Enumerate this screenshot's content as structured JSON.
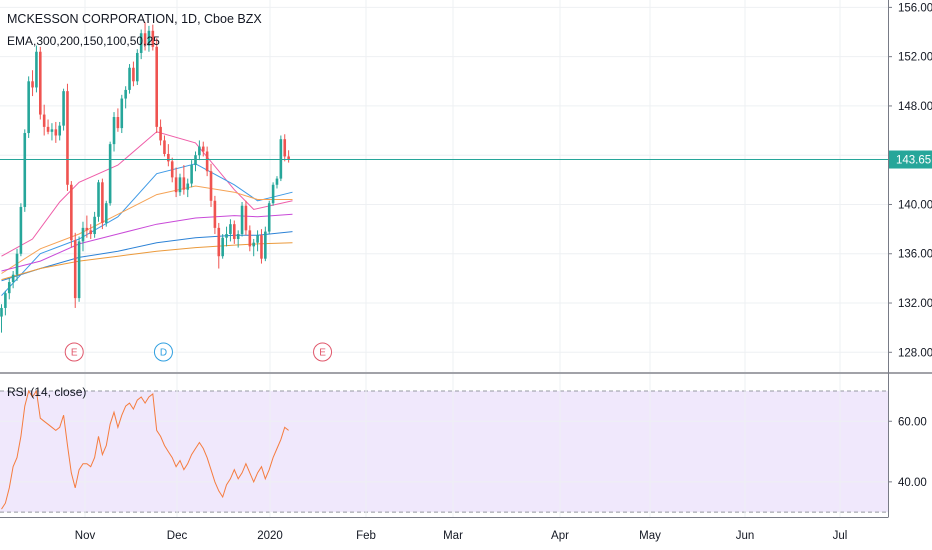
{
  "header": {
    "title": "MCKESSON CORPORATION, 1D, Cboe BZX",
    "ema_label": "EMA,300,200,150,100,50,25",
    "rsi_label": "RSI (14, close)"
  },
  "colors": {
    "up": "#26a69a",
    "down": "#ef5350",
    "rsi_line": "#f57c3f",
    "rsi_band": "#e8dcfb",
    "grid": "#eef0f3",
    "last_price_line": "#26a69a",
    "earnings_marker": "#e0576b",
    "dividend_marker": "#2f9fe0"
  },
  "chart_data": [
    {
      "type": "candlestick",
      "title": "MCKESSON CORPORATION, 1D, Cboe BZX",
      "x_ticks": [
        "Nov",
        "Dec",
        "2020",
        "Feb",
        "Mar",
        "Apr",
        "May",
        "Jun",
        "Jul"
      ],
      "y_ticks": [
        156.0,
        152.0,
        148.0,
        144.0,
        140.0,
        136.0,
        132.0,
        128.0
      ],
      "ylim": [
        126.4,
        156.6
      ],
      "last_price": 143.65,
      "last_price_label": "143.65",
      "ohlc": [
        [
          130.9,
          131.9,
          129.6,
          131.6
        ],
        [
          131.6,
          133.0,
          131.0,
          132.8
        ],
        [
          132.8,
          134.0,
          132.3,
          133.7
        ],
        [
          133.7,
          134.6,
          133.2,
          134.3
        ],
        [
          134.3,
          136.4,
          133.8,
          136.0
        ],
        [
          136.0,
          140.1,
          135.8,
          139.8
        ],
        [
          139.8,
          146.1,
          139.4,
          145.8
        ],
        [
          145.8,
          150.4,
          145.4,
          150.0
        ],
        [
          150.0,
          150.9,
          148.8,
          149.5
        ],
        [
          149.5,
          152.9,
          149.1,
          152.4
        ],
        [
          152.4,
          152.8,
          146.9,
          147.3
        ],
        [
          147.3,
          148.1,
          145.6,
          146.3
        ],
        [
          146.3,
          146.9,
          145.7,
          145.9
        ],
        [
          145.9,
          146.6,
          145.2,
          146.1
        ],
        [
          146.1,
          146.7,
          145.0,
          145.6
        ],
        [
          145.6,
          146.7,
          145.2,
          146.4
        ],
        [
          146.4,
          149.4,
          146.0,
          149.2
        ],
        [
          149.2,
          149.8,
          141.1,
          141.6
        ],
        [
          141.6,
          141.9,
          136.5,
          137.1
        ],
        [
          137.1,
          137.7,
          131.6,
          132.4
        ],
        [
          132.4,
          137.4,
          132.1,
          137.0
        ],
        [
          137.0,
          138.6,
          136.2,
          138.1
        ],
        [
          138.1,
          139.1,
          137.3,
          137.9
        ],
        [
          137.9,
          138.4,
          137.2,
          137.6
        ],
        [
          137.6,
          139.4,
          137.3,
          139.0
        ],
        [
          139.0,
          142.0,
          138.6,
          141.8
        ],
        [
          141.8,
          142.1,
          138.0,
          138.5
        ],
        [
          138.5,
          140.3,
          138.2,
          140.1
        ],
        [
          140.1,
          145.1,
          139.9,
          144.9
        ],
        [
          144.9,
          147.5,
          144.3,
          147.1
        ],
        [
          147.1,
          147.8,
          145.9,
          146.2
        ],
        [
          146.2,
          148.9,
          145.8,
          148.6
        ],
        [
          148.6,
          149.6,
          147.8,
          149.3
        ],
        [
          149.3,
          151.4,
          149.0,
          151.1
        ],
        [
          151.1,
          151.6,
          149.6,
          150.0
        ],
        [
          150.0,
          152.6,
          149.7,
          152.3
        ],
        [
          152.3,
          154.2,
          151.8,
          153.9
        ],
        [
          153.9,
          154.8,
          152.5,
          152.9
        ],
        [
          152.9,
          154.5,
          152.4,
          154.1
        ],
        [
          154.1,
          154.6,
          152.5,
          152.8
        ],
        [
          152.8,
          153.5,
          145.8,
          146.3
        ],
        [
          146.3,
          146.9,
          144.8,
          145.2
        ],
        [
          145.2,
          145.6,
          143.9,
          144.1
        ],
        [
          144.1,
          144.9,
          143.1,
          143.5
        ],
        [
          143.5,
          143.8,
          141.8,
          142.2
        ],
        [
          142.2,
          143.0,
          140.6,
          141.0
        ],
        [
          141.0,
          142.5,
          140.7,
          142.2
        ],
        [
          142.2,
          143.2,
          140.8,
          141.2
        ],
        [
          141.2,
          142.1,
          140.6,
          141.7
        ],
        [
          141.7,
          143.6,
          141.4,
          143.2
        ],
        [
          143.2,
          144.3,
          142.7,
          144.0
        ],
        [
          144.0,
          145.2,
          143.6,
          144.7
        ],
        [
          144.7,
          145.1,
          143.9,
          144.3
        ],
        [
          144.3,
          144.7,
          142.3,
          142.7
        ],
        [
          142.7,
          143.3,
          139.8,
          140.3
        ],
        [
          140.3,
          140.7,
          137.6,
          138.1
        ],
        [
          138.1,
          138.5,
          134.8,
          135.8
        ],
        [
          135.8,
          137.6,
          135.6,
          137.3
        ],
        [
          137.3,
          138.2,
          136.6,
          137.6
        ],
        [
          137.6,
          138.8,
          137.0,
          138.4
        ],
        [
          138.4,
          138.7,
          136.8,
          137.2
        ],
        [
          137.2,
          137.9,
          136.5,
          137.6
        ],
        [
          137.6,
          140.2,
          137.4,
          139.9
        ],
        [
          139.9,
          140.3,
          137.5,
          137.9
        ],
        [
          137.9,
          138.3,
          136.2,
          136.6
        ],
        [
          136.6,
          137.2,
          135.8,
          136.9
        ],
        [
          136.9,
          137.9,
          136.2,
          137.5
        ],
        [
          137.5,
          138.0,
          135.2,
          135.6
        ],
        [
          135.6,
          138.2,
          135.4,
          137.8
        ],
        [
          137.8,
          140.3,
          137.6,
          140.1
        ],
        [
          140.1,
          141.8,
          139.9,
          141.6
        ],
        [
          141.6,
          142.3,
          141.3,
          142.1
        ],
        [
          142.1,
          145.6,
          141.9,
          145.3
        ],
        [
          145.3,
          145.7,
          143.5,
          143.9
        ],
        [
          143.9,
          144.4,
          143.4,
          143.65
        ]
      ],
      "ema_lines": [
        {
          "color": "#ef5da8",
          "values": [
            [
              0,
              135.8
            ],
            [
              8,
              137.2
            ],
            [
              15,
              140.2
            ],
            [
              20,
              141.8
            ],
            [
              30,
              143.2
            ],
            [
              40,
              145.9
            ],
            [
              50,
              145.0
            ],
            [
              60,
              141.2
            ],
            [
              65,
              139.6
            ],
            [
              75,
              140.3
            ]
          ]
        },
        {
          "color": "#3f9ae6",
          "values": [
            [
              0,
              132.6
            ],
            [
              10,
              136.0
            ],
            [
              20,
              137.2
            ],
            [
              30,
              139.0
            ],
            [
              40,
              142.5
            ],
            [
              50,
              143.3
            ],
            [
              60,
              141.6
            ],
            [
              66,
              140.3
            ],
            [
              75,
              141.0
            ]
          ]
        },
        {
          "color": "#f5a356",
          "values": [
            [
              0,
              134.4
            ],
            [
              10,
              136.4
            ],
            [
              20,
              137.6
            ],
            [
              30,
              139.2
            ],
            [
              40,
              140.8
            ],
            [
              50,
              141.5
            ],
            [
              60,
              141.0
            ],
            [
              66,
              140.4
            ],
            [
              75,
              140.4
            ]
          ]
        },
        {
          "color": "#c94ad8",
          "values": [
            [
              0,
              134.6
            ],
            [
              10,
              135.4
            ],
            [
              20,
              136.8
            ],
            [
              30,
              137.6
            ],
            [
              40,
              138.4
            ],
            [
              50,
              138.9
            ],
            [
              60,
              139.1
            ],
            [
              66,
              139.0
            ],
            [
              75,
              139.2
            ]
          ]
        },
        {
          "color": "#2c82d6",
          "values": [
            [
              0,
              133.8
            ],
            [
              10,
              134.8
            ],
            [
              20,
              135.7
            ],
            [
              30,
              136.2
            ],
            [
              40,
              136.9
            ],
            [
              50,
              137.3
            ],
            [
              60,
              137.5
            ],
            [
              66,
              137.5
            ],
            [
              75,
              137.8
            ]
          ]
        },
        {
          "color": "#eb9a3c",
          "values": [
            [
              0,
              133.9
            ],
            [
              10,
              134.8
            ],
            [
              20,
              135.4
            ],
            [
              30,
              135.8
            ],
            [
              40,
              136.2
            ],
            [
              50,
              136.5
            ],
            [
              60,
              136.7
            ],
            [
              66,
              136.8
            ],
            [
              75,
              136.9
            ]
          ]
        }
      ],
      "markers": [
        {
          "type": "E",
          "index": 19
        },
        {
          "type": "D",
          "index": 42
        },
        {
          "type": "E",
          "index": 83
        }
      ]
    },
    {
      "type": "line",
      "title": "RSI (14, close)",
      "y_ticks": [
        60.0,
        40.0
      ],
      "ylim": [
        28.4,
        75.6
      ],
      "band": [
        30,
        70
      ],
      "values": [
        31,
        33,
        38,
        45,
        48,
        55,
        65,
        70,
        68,
        70,
        61,
        60,
        59,
        58,
        57,
        58,
        62,
        52,
        43,
        38,
        44,
        46,
        46,
        45,
        48,
        55,
        49,
        52,
        59,
        63,
        58,
        62,
        65,
        66,
        64,
        67,
        68,
        66,
        68,
        69,
        57,
        55,
        52,
        50,
        48,
        45,
        47,
        44,
        46,
        49,
        51,
        53,
        51,
        48,
        44,
        40,
        37,
        35,
        39,
        41,
        44,
        41,
        43,
        46,
        43,
        40,
        43,
        45,
        41,
        44,
        48,
        51,
        54,
        58,
        57
      ]
    }
  ]
}
